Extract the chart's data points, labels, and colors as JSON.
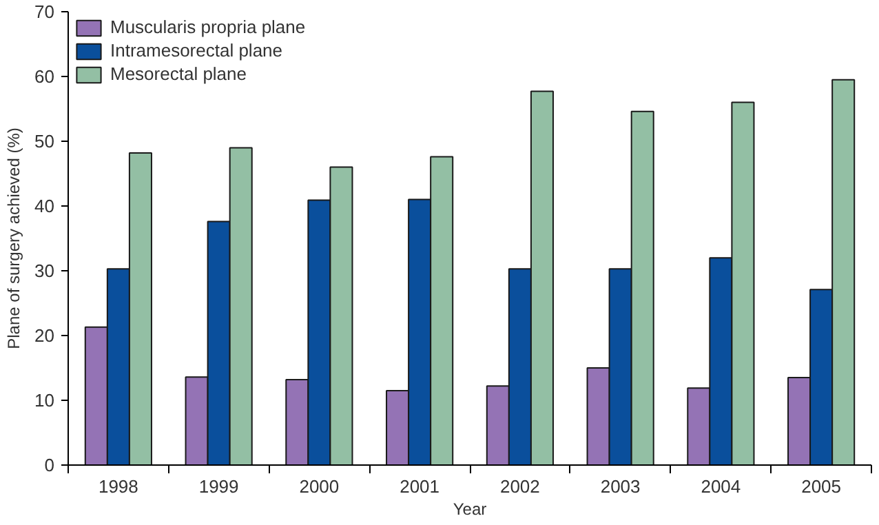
{
  "chart_data": {
    "type": "bar",
    "xlabel": "Year",
    "ylabel": "Plane of surgery achieved (%)",
    "categories": [
      "1998",
      "1999",
      "2000",
      "2001",
      "2002",
      "2003",
      "2004",
      "2005"
    ],
    "series": [
      {
        "name": "Muscularis propria plane",
        "color": "#9473b5",
        "values": [
          21.3,
          13.6,
          13.2,
          11.5,
          12.2,
          15.0,
          11.9,
          13.5
        ]
      },
      {
        "name": "Intramesorectal plane",
        "color": "#0a4f9c",
        "values": [
          30.3,
          37.6,
          40.9,
          41.0,
          30.3,
          30.3,
          32.0,
          27.1
        ]
      },
      {
        "name": "Mesorectal plane",
        "color": "#93bfa4",
        "values": [
          48.2,
          49.0,
          46.0,
          47.6,
          57.7,
          54.6,
          56.0,
          59.5
        ]
      }
    ],
    "ylim": [
      0,
      70
    ],
    "yticks": [
      0,
      10,
      20,
      30,
      40,
      50,
      60,
      70
    ],
    "grid": false,
    "legend": "top left"
  }
}
